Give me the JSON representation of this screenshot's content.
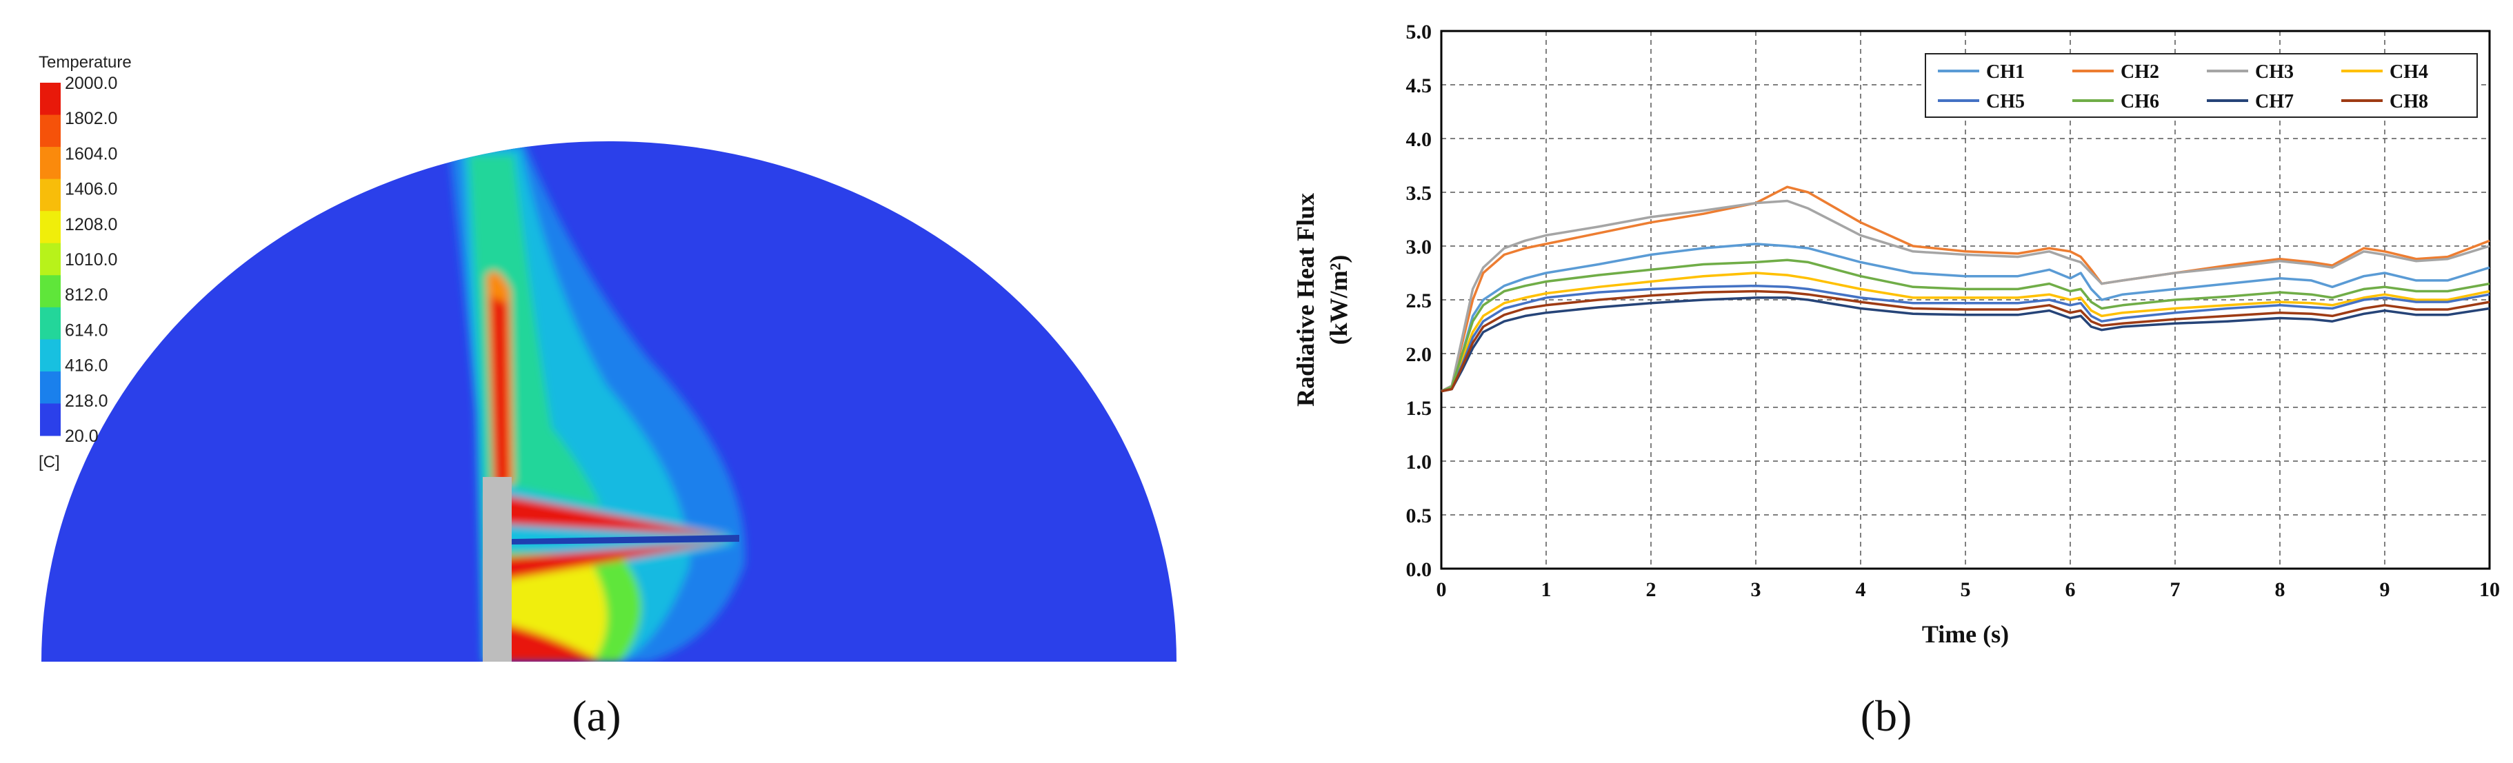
{
  "panels": {
    "a": {
      "label": "(a)",
      "label_letter": "a",
      "contour": {
        "title": "Temperature",
        "unit": "[C]",
        "ticks": [
          "2000.0",
          "1802.0",
          "1604.0",
          "1406.0",
          "1208.0",
          "1010.0",
          "812.0",
          "614.0",
          "416.0",
          "218.0",
          "20.0"
        ],
        "band_colors": [
          "#e8190a",
          "#f5520a",
          "#fa8a0c",
          "#f8bd0a",
          "#f0ee0a",
          "#b8f21a",
          "#5fe63a",
          "#23d69a",
          "#18c0e0",
          "#1a80ec",
          "#2b40ea"
        ]
      }
    },
    "b": {
      "label": "(b)",
      "label_letter": "b"
    }
  },
  "chart_data": {
    "type": "line",
    "title": "",
    "xlabel": "Time (s)",
    "ylabel": "Radiative Heat Flux",
    "ylabel_unit": "(kW/m²)",
    "xlim": [
      0,
      10
    ],
    "ylim": [
      0,
      5
    ],
    "x_ticks": [
      "0",
      "1",
      "2",
      "3",
      "4",
      "5",
      "6",
      "7",
      "8",
      "9",
      "10"
    ],
    "y_ticks": [
      "0.0",
      "0.5",
      "1.0",
      "1.5",
      "2.0",
      "2.5",
      "3.0",
      "3.5",
      "4.0",
      "4.5",
      "5.0"
    ],
    "grid": true,
    "legend_position": "top-right",
    "x": [
      0,
      0.1,
      0.2,
      0.3,
      0.4,
      0.6,
      0.8,
      1,
      1.5,
      2,
      2.5,
      3,
      3.3,
      3.5,
      4,
      4.5,
      5,
      5.5,
      5.8,
      6,
      6.1,
      6.2,
      6.3,
      6.5,
      7,
      7.5,
      8,
      8.3,
      8.5,
      8.8,
      9,
      9.3,
      9.6,
      10
    ],
    "series": [
      {
        "name": "CH1",
        "color": "#5a9bd5",
        "values": [
          1.65,
          1.7,
          2.0,
          2.35,
          2.5,
          2.63,
          2.7,
          2.75,
          2.83,
          2.92,
          2.98,
          3.02,
          3.0,
          2.98,
          2.85,
          2.75,
          2.72,
          2.72,
          2.78,
          2.7,
          2.75,
          2.6,
          2.5,
          2.55,
          2.6,
          2.65,
          2.7,
          2.68,
          2.62,
          2.72,
          2.75,
          2.68,
          2.68,
          2.8
        ]
      },
      {
        "name": "CH2",
        "color": "#ed7d31",
        "values": [
          1.65,
          1.7,
          2.1,
          2.5,
          2.75,
          2.92,
          2.98,
          3.02,
          3.12,
          3.22,
          3.3,
          3.4,
          3.55,
          3.5,
          3.22,
          3.0,
          2.95,
          2.93,
          2.98,
          2.95,
          2.9,
          2.78,
          2.65,
          2.68,
          2.75,
          2.82,
          2.88,
          2.85,
          2.82,
          2.98,
          2.95,
          2.88,
          2.9,
          3.05
        ]
      },
      {
        "name": "CH3",
        "color": "#a5a5a5",
        "values": [
          1.65,
          1.7,
          2.15,
          2.6,
          2.8,
          2.98,
          3.05,
          3.1,
          3.18,
          3.27,
          3.33,
          3.4,
          3.42,
          3.35,
          3.1,
          2.95,
          2.92,
          2.9,
          2.95,
          2.88,
          2.85,
          2.75,
          2.65,
          2.68,
          2.75,
          2.8,
          2.86,
          2.83,
          2.8,
          2.95,
          2.92,
          2.86,
          2.88,
          3.0
        ]
      },
      {
        "name": "CH4",
        "color": "#ffc000",
        "values": [
          1.65,
          1.68,
          1.95,
          2.2,
          2.35,
          2.47,
          2.52,
          2.56,
          2.62,
          2.67,
          2.72,
          2.75,
          2.73,
          2.7,
          2.6,
          2.52,
          2.52,
          2.52,
          2.55,
          2.5,
          2.52,
          2.4,
          2.35,
          2.38,
          2.42,
          2.45,
          2.48,
          2.47,
          2.45,
          2.52,
          2.55,
          2.5,
          2.5,
          2.58
        ]
      },
      {
        "name": "CH5",
        "color": "#4472c4",
        "values": [
          1.65,
          1.68,
          1.9,
          2.15,
          2.3,
          2.42,
          2.47,
          2.52,
          2.57,
          2.6,
          2.62,
          2.63,
          2.62,
          2.6,
          2.52,
          2.47,
          2.47,
          2.47,
          2.5,
          2.45,
          2.47,
          2.35,
          2.3,
          2.33,
          2.38,
          2.42,
          2.45,
          2.43,
          2.42,
          2.5,
          2.52,
          2.48,
          2.48,
          2.55
        ]
      },
      {
        "name": "CH6",
        "color": "#70ad47",
        "values": [
          1.65,
          1.69,
          2.0,
          2.3,
          2.45,
          2.58,
          2.63,
          2.67,
          2.73,
          2.78,
          2.83,
          2.85,
          2.87,
          2.85,
          2.72,
          2.62,
          2.6,
          2.6,
          2.65,
          2.58,
          2.6,
          2.48,
          2.42,
          2.45,
          2.5,
          2.53,
          2.57,
          2.55,
          2.52,
          2.6,
          2.62,
          2.58,
          2.58,
          2.65
        ]
      },
      {
        "name": "CH7",
        "color": "#264478",
        "values": [
          1.65,
          1.67,
          1.85,
          2.05,
          2.2,
          2.3,
          2.35,
          2.38,
          2.43,
          2.47,
          2.5,
          2.52,
          2.52,
          2.5,
          2.42,
          2.37,
          2.36,
          2.36,
          2.4,
          2.33,
          2.35,
          2.25,
          2.22,
          2.25,
          2.28,
          2.3,
          2.33,
          2.32,
          2.3,
          2.37,
          2.4,
          2.36,
          2.36,
          2.42
        ]
      },
      {
        "name": "CH8",
        "color": "#9e3b14",
        "values": [
          1.65,
          1.67,
          1.88,
          2.1,
          2.25,
          2.36,
          2.42,
          2.45,
          2.5,
          2.54,
          2.57,
          2.58,
          2.57,
          2.55,
          2.48,
          2.42,
          2.41,
          2.41,
          2.45,
          2.38,
          2.4,
          2.3,
          2.26,
          2.28,
          2.32,
          2.35,
          2.38,
          2.37,
          2.35,
          2.42,
          2.45,
          2.41,
          2.41,
          2.48
        ]
      }
    ]
  }
}
